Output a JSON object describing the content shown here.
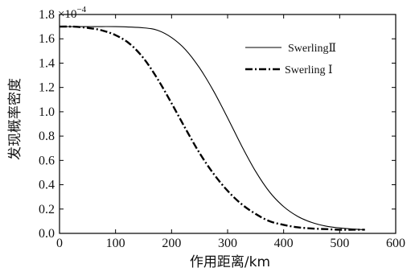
{
  "chart_data": {
    "type": "line",
    "xlabel": "作用距离/km",
    "ylabel": "发现概率密度",
    "y_multiplier": {
      "base": "×10",
      "exponent": "−4"
    },
    "xlim": [
      0,
      600
    ],
    "ylim": [
      0,
      1.8
    ],
    "xticks": [
      0,
      100,
      200,
      300,
      400,
      500,
      600
    ],
    "yticks": [
      0.0,
      0.2,
      0.4,
      0.6,
      0.8,
      1.0,
      1.2,
      1.4,
      1.6,
      1.8
    ],
    "ytick_labels": [
      "0.0",
      "0.2",
      "0.4",
      "0.6",
      "0.8",
      "1.0",
      "1.2",
      "1.4",
      "1.6",
      "1.8"
    ],
    "grid": false,
    "legend_position": "top-right",
    "series": [
      {
        "name": "SwerlingⅡ",
        "style": "solid",
        "color": "#000000",
        "x": [
          0,
          50,
          100,
          150,
          175,
          200,
          225,
          250,
          275,
          300,
          325,
          350,
          375,
          400,
          425,
          450,
          475,
          500,
          525,
          545
        ],
        "y": [
          1.7,
          1.7,
          1.7,
          1.69,
          1.67,
          1.61,
          1.51,
          1.36,
          1.17,
          0.95,
          0.72,
          0.51,
          0.34,
          0.22,
          0.14,
          0.09,
          0.06,
          0.045,
          0.035,
          0.03
        ]
      },
      {
        "name": "Swerling Ⅰ",
        "style": "dashdot",
        "color": "#000000",
        "x": [
          0,
          25,
          50,
          75,
          100,
          125,
          150,
          175,
          200,
          225,
          250,
          275,
          300,
          325,
          350,
          375,
          400,
          425,
          450,
          475,
          500,
          525,
          545
        ],
        "y": [
          1.7,
          1.7,
          1.69,
          1.67,
          1.63,
          1.56,
          1.44,
          1.27,
          1.07,
          0.86,
          0.66,
          0.49,
          0.35,
          0.24,
          0.16,
          0.1,
          0.07,
          0.05,
          0.04,
          0.035,
          0.03,
          0.03,
          0.03
        ]
      }
    ]
  }
}
